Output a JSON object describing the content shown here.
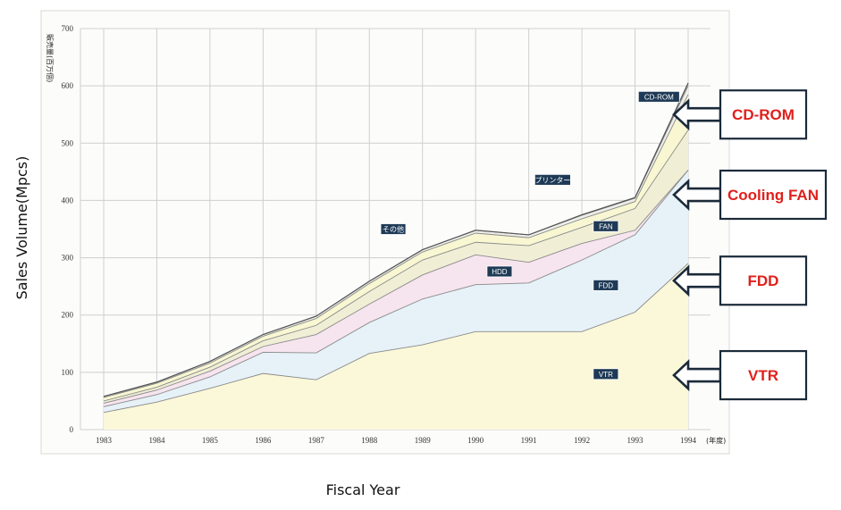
{
  "chart_data": {
    "type": "area",
    "stacked": true,
    "x": [
      "1983",
      "1984",
      "1985",
      "1986",
      "1987",
      "1988",
      "1989",
      "1990",
      "1991",
      "1992",
      "1993",
      "1994"
    ],
    "x_suffix": "(年度)",
    "xlabel": "Fiscal Year",
    "ylabel": "Sales Volume(Mpcs)",
    "y_unit_label": "販売量(百万個)",
    "ylim": [
      0,
      700
    ],
    "yticks": [
      0,
      100,
      200,
      300,
      400,
      500,
      600,
      700
    ],
    "grid": true,
    "series": [
      {
        "name": "VTR",
        "color": "#fbf8d9",
        "values": [
          30,
          48,
          72,
          98,
          87,
          133,
          148,
          171,
          171,
          171,
          205,
          290
        ]
      },
      {
        "name": "FDD",
        "color": "#e6f1f8",
        "values": [
          10,
          13,
          20,
          37,
          47,
          54,
          80,
          82,
          85,
          125,
          135,
          163
        ]
      },
      {
        "name": "HDD",
        "color": "#f6e4ee",
        "values": [
          6,
          8,
          10,
          10,
          32,
          32,
          42,
          52,
          36,
          29,
          8,
          0
        ]
      },
      {
        "name": "FAN",
        "color": "#f0efd6",
        "values": [
          4,
          5,
          7,
          10,
          16,
          22,
          26,
          22,
          29,
          28,
          38,
          70
        ]
      },
      {
        "name": "その他",
        "color": "#f8f7d2",
        "values": [
          6,
          7,
          7,
          8,
          12,
          14,
          14,
          16,
          14,
          15,
          12,
          62
        ]
      },
      {
        "name": "プリンター",
        "color": "#eeeeea",
        "values": [
          2,
          2,
          3,
          3,
          4,
          4,
          4,
          5,
          5,
          6,
          6,
          15
        ]
      },
      {
        "name": "CD-ROM",
        "color": "#dddddd",
        "values": [
          0,
          0,
          0,
          0,
          0,
          0,
          0,
          0,
          0,
          1,
          1,
          5
        ]
      }
    ],
    "series_tags": [
      {
        "text": "CD-ROM",
        "x": "1993",
        "y": 581
      },
      {
        "text": "プリンター",
        "x": "1991",
        "y": 436
      },
      {
        "text": "その他",
        "x": "1988",
        "y": 350
      },
      {
        "text": "FAN",
        "x": "1992",
        "y": 355
      },
      {
        "text": "HDD",
        "x": "1990",
        "y": 276
      },
      {
        "text": "FDD",
        "x": "1992",
        "y": 252
      },
      {
        "text": "VTR",
        "x": "1992",
        "y": 97
      }
    ],
    "callouts": [
      {
        "text": "CD-ROM",
        "x": "1994",
        "y": 550
      },
      {
        "text": "Cooling FAN",
        "x": "1994",
        "y": 410
      },
      {
        "text": "FDD",
        "x": "1994",
        "y": 260
      },
      {
        "text": "VTR",
        "x": "1994",
        "y": 95
      }
    ]
  }
}
